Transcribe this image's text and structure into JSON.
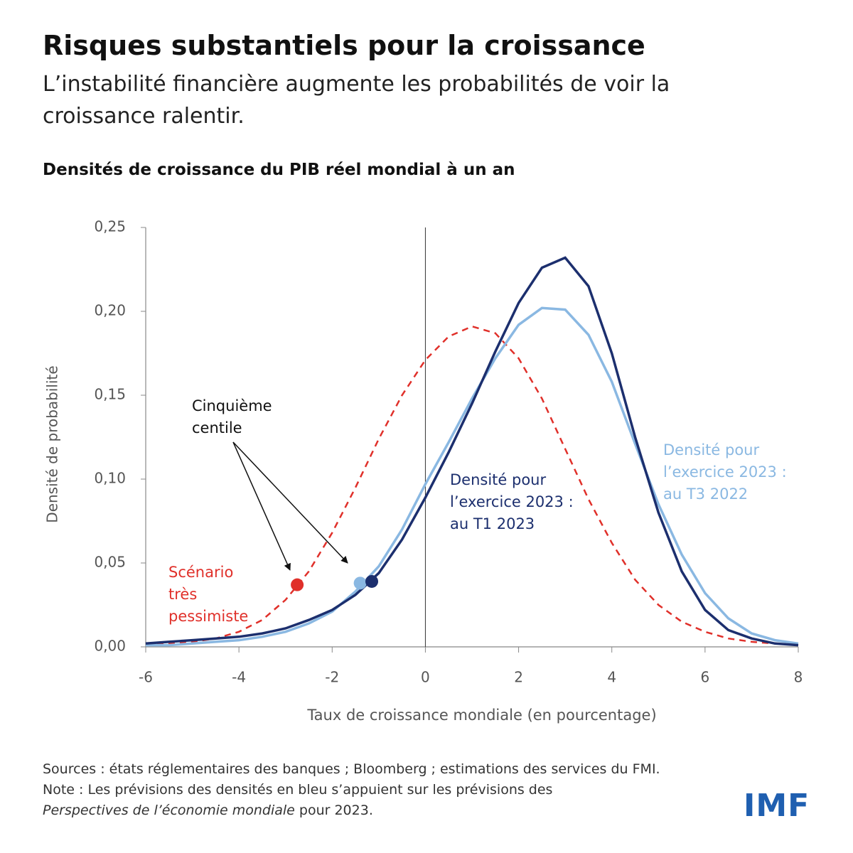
{
  "chart_data": {
    "type": "line",
    "title": "Risques substantiels pour la croissance",
    "subtitle": "L’instabilité financière augmente les probabilités de voir la croissance ralentir.",
    "chart_title": "Densités de croissance du PIB réel mondial à un an",
    "x_label": "Taux de croissance mondiale (en pourcentage)",
    "y_label": "Densité de probabilité",
    "x": [
      -6,
      -5.5,
      -5,
      -4.5,
      -4,
      -3.5,
      -3,
      -2.5,
      -2,
      -1.5,
      -1,
      -0.5,
      0,
      0.5,
      1,
      1.5,
      2,
      2.5,
      3,
      3.5,
      4,
      4.5,
      5,
      5.5,
      6,
      6.5,
      7,
      7.5,
      8
    ],
    "series": [
      {
        "name": "Scénario très pessimiste",
        "color": "#e0302a",
        "dash": true,
        "values": [
          0.001,
          0.002,
          0.003,
          0.005,
          0.009,
          0.016,
          0.028,
          0.045,
          0.068,
          0.095,
          0.124,
          0.15,
          0.171,
          0.185,
          0.191,
          0.187,
          0.172,
          0.148,
          0.118,
          0.088,
          0.062,
          0.04,
          0.025,
          0.015,
          0.009,
          0.005,
          0.003,
          0.002,
          0.001
        ]
      },
      {
        "name": "Densité pour l’exercice 2023 : au T3 2022",
        "color": "#8ab8e2",
        "dash": false,
        "values": [
          0.001,
          0.001,
          0.002,
          0.003,
          0.004,
          0.006,
          0.009,
          0.014,
          0.021,
          0.033,
          0.048,
          0.07,
          0.097,
          0.122,
          0.148,
          0.172,
          0.192,
          0.202,
          0.201,
          0.186,
          0.158,
          0.121,
          0.085,
          0.055,
          0.032,
          0.017,
          0.008,
          0.004,
          0.002
        ]
      },
      {
        "name": "Densité pour l’exercice 2023 : au T1 2023",
        "color": "#1c2f6e",
        "dash": false,
        "values": [
          0.002,
          0.003,
          0.004,
          0.005,
          0.006,
          0.008,
          0.011,
          0.016,
          0.022,
          0.031,
          0.044,
          0.064,
          0.089,
          0.116,
          0.145,
          0.176,
          0.205,
          0.226,
          0.232,
          0.215,
          0.175,
          0.125,
          0.08,
          0.045,
          0.022,
          0.01,
          0.005,
          0.002,
          0.001
        ]
      }
    ],
    "points": [
      {
        "x": -2.75,
        "y": 0.037,
        "color": "#e0302a"
      },
      {
        "x": -1.4,
        "y": 0.038,
        "color": "#8ab8e2"
      },
      {
        "x": -1.15,
        "y": 0.039,
        "color": "#1c2f6e"
      }
    ],
    "annotation": "Cinquième centile",
    "vline": 0,
    "xlim": [
      -6,
      8
    ],
    "xticks": [
      -6,
      -4,
      -2,
      0,
      2,
      4,
      6,
      8
    ],
    "ylim": [
      0,
      0.25
    ],
    "yticks": [
      {
        "value": 0,
        "label": "0,00"
      },
      {
        "value": 0.05,
        "label": "0,05"
      },
      {
        "value": 0.1,
        "label": "0,10"
      },
      {
        "value": 0.15,
        "label": "0,15"
      },
      {
        "value": 0.2,
        "label": "0,20"
      },
      {
        "value": 0.25,
        "label": "0,25"
      }
    ],
    "sources": "Sources : états réglementaires des banques ; Bloomberg ; estimations des services du FMI.",
    "note": [
      "Note : Les prévisions des densités en bleu s’appuient sur les prévisions des ",
      "Perspectives de l’économie mondiale",
      " pour 2023."
    ],
    "logo": "IMF"
  }
}
